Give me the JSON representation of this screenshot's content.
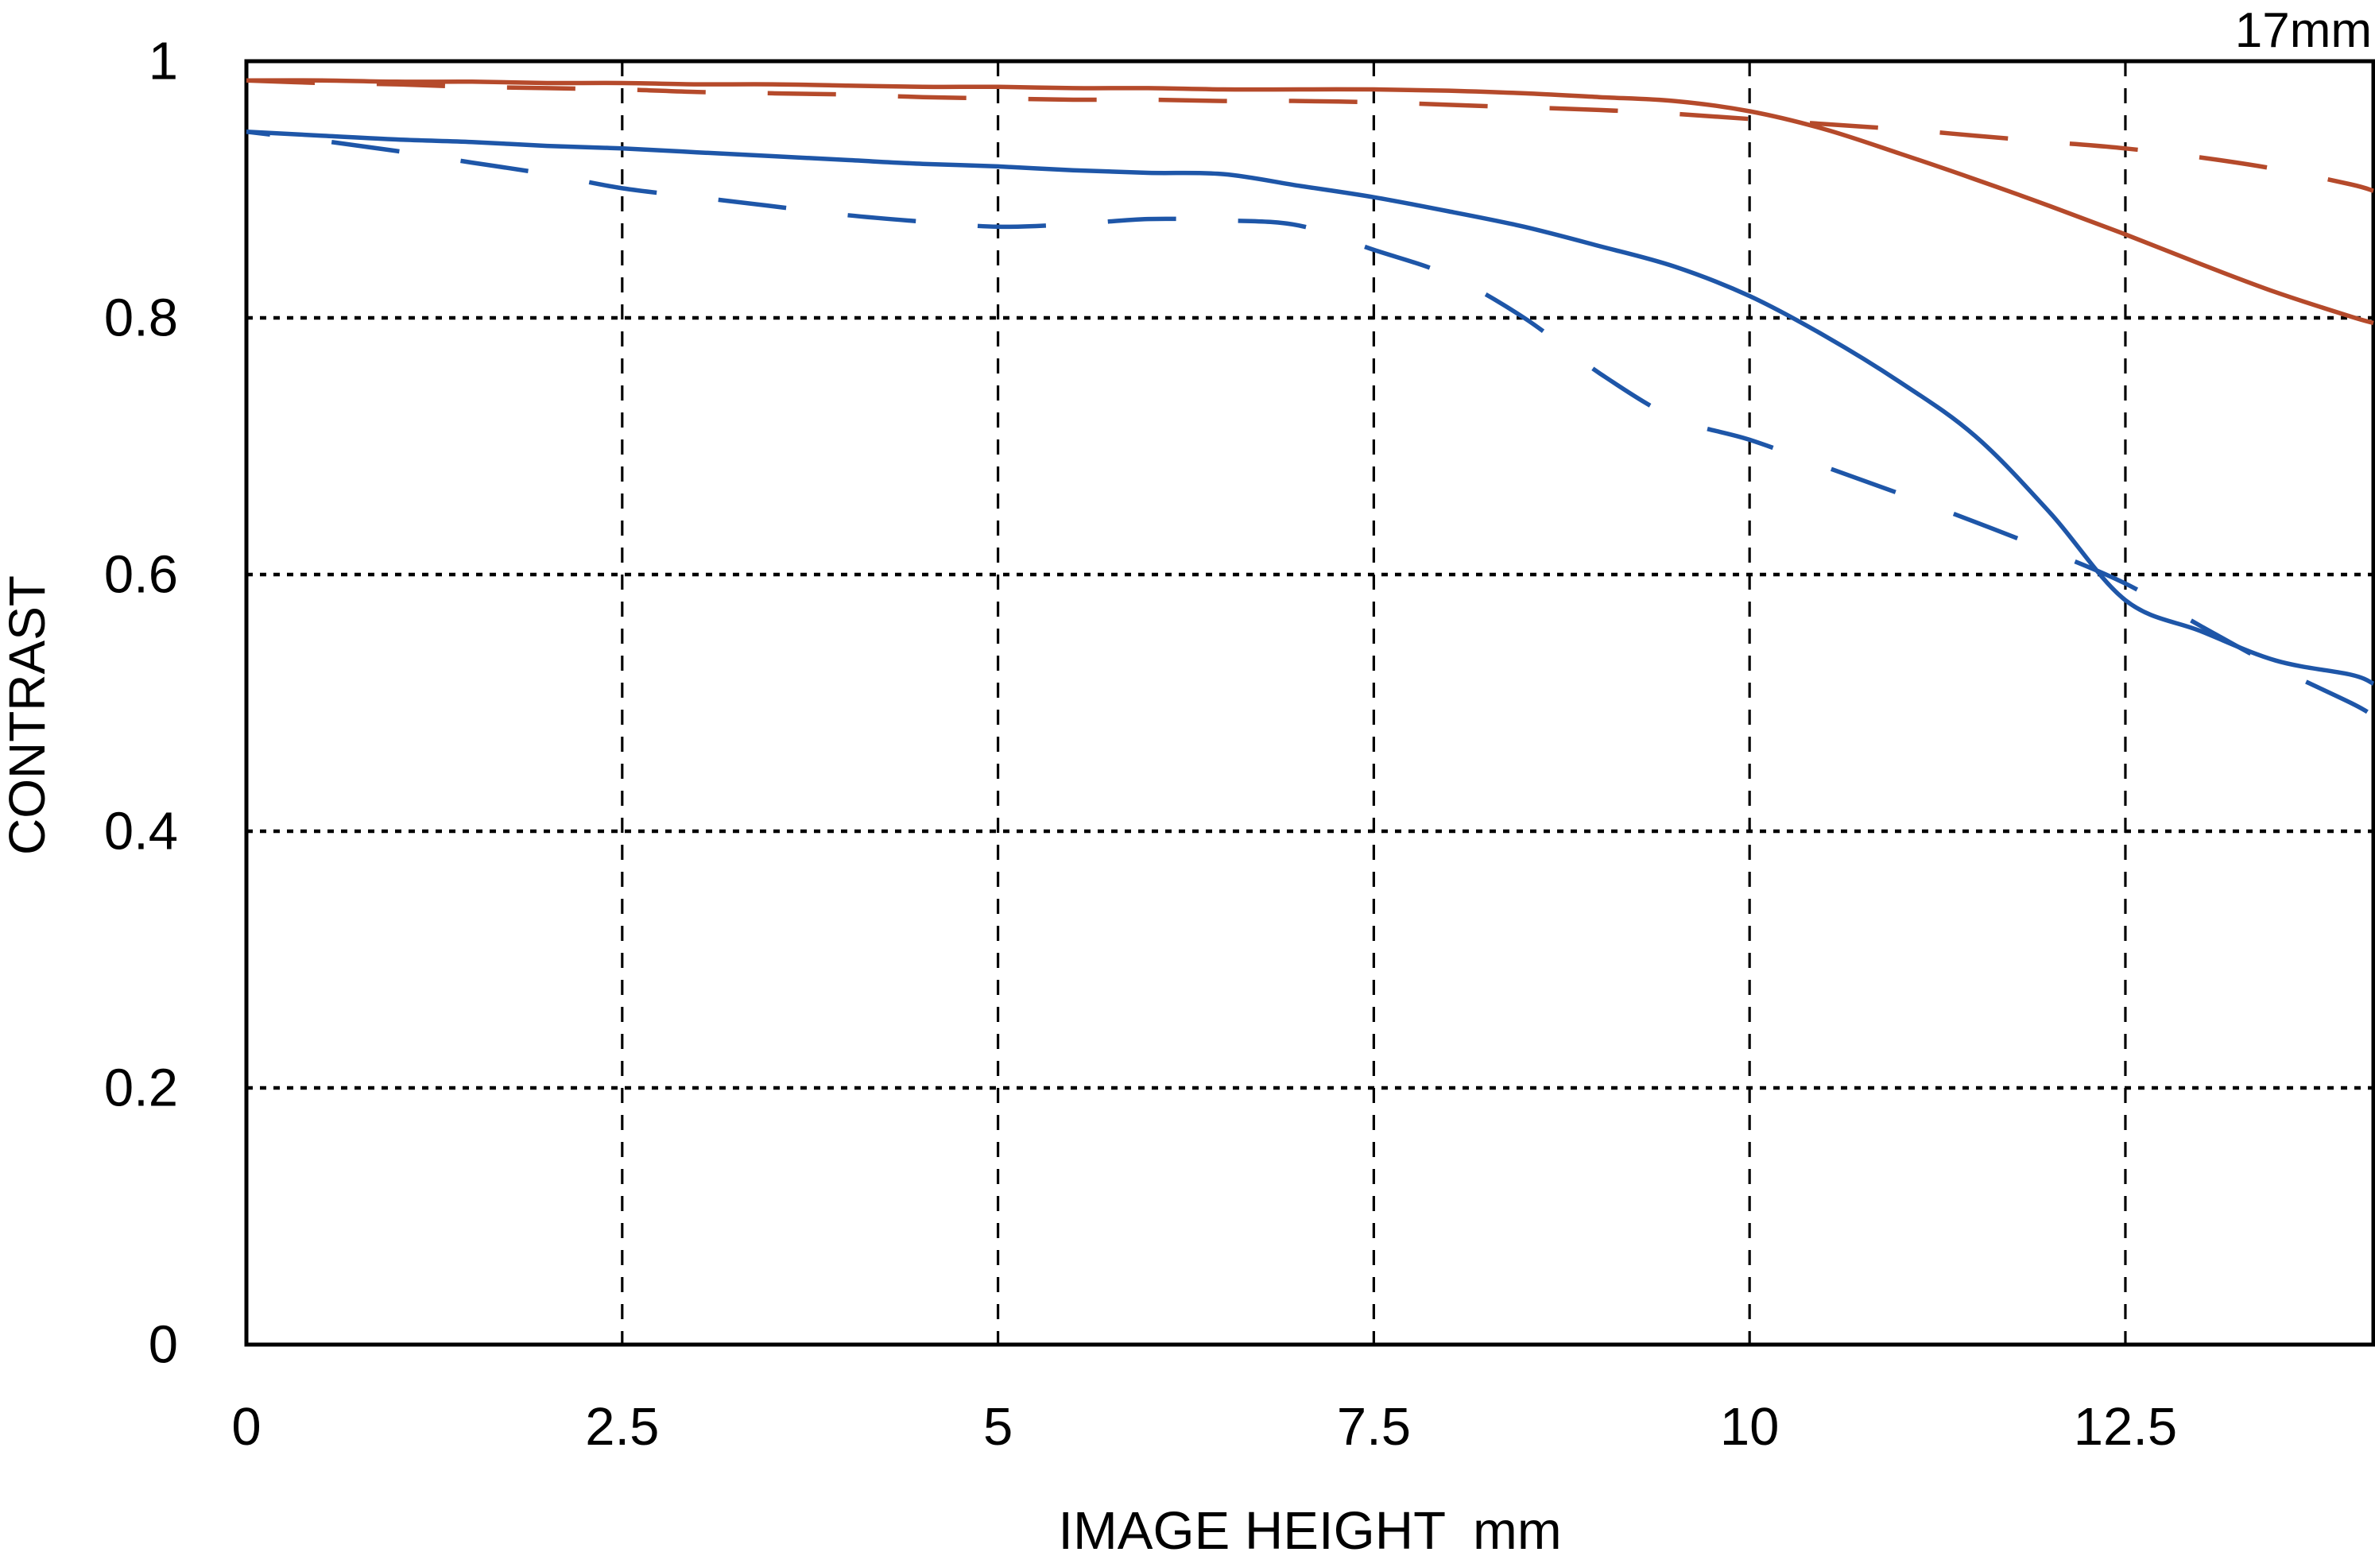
{
  "chart_title": "17mm",
  "chart_data": {
    "type": "line",
    "title": "17mm",
    "xlabel": "IMAGE HEIGHT",
    "xunit": "mm",
    "ylabel": "CONTRAST",
    "xlim": [
      0,
      14.15
    ],
    "ylim": [
      0,
      1
    ],
    "xticks": [
      0,
      2.5,
      5,
      7.5,
      10,
      12.5
    ],
    "yticks": [
      0,
      0.2,
      0.4,
      0.6,
      0.8,
      1
    ],
    "grid": {
      "vertical_style": "dashed",
      "horizontal_style": "dotted",
      "color": "#000000"
    },
    "legend": "none",
    "axis_color": "#000000",
    "x": [
      0,
      0.5,
      1,
      1.5,
      2,
      2.5,
      3,
      3.5,
      4,
      4.5,
      5,
      5.5,
      6,
      6.5,
      7,
      7.5,
      8,
      8.5,
      9,
      9.5,
      10,
      10.5,
      11,
      11.5,
      12,
      12.5,
      13,
      13.5,
      14,
      14.15
    ],
    "series": [
      {
        "name": "red-solid",
        "color": "#b54a2b",
        "style": "solid",
        "values": [
          0.985,
          0.985,
          0.984,
          0.984,
          0.983,
          0.983,
          0.982,
          0.982,
          0.981,
          0.98,
          0.98,
          0.979,
          0.979,
          0.978,
          0.978,
          0.978,
          0.977,
          0.975,
          0.972,
          0.969,
          0.961,
          0.947,
          0.928,
          0.908,
          0.887,
          0.865,
          0.842,
          0.82,
          0.801,
          0.796
        ]
      },
      {
        "name": "red-dashed",
        "color": "#b54a2b",
        "style": "dashed",
        "values": [
          0.985,
          0.983,
          0.982,
          0.98,
          0.979,
          0.978,
          0.976,
          0.975,
          0.974,
          0.972,
          0.971,
          0.97,
          0.97,
          0.969,
          0.969,
          0.968,
          0.966,
          0.964,
          0.962,
          0.959,
          0.955,
          0.951,
          0.947,
          0.942,
          0.937,
          0.932,
          0.925,
          0.916,
          0.904,
          0.899
        ]
      },
      {
        "name": "blue-solid",
        "color": "#1e56a8",
        "style": "solid",
        "values": [
          0.945,
          0.942,
          0.939,
          0.937,
          0.934,
          0.932,
          0.929,
          0.926,
          0.923,
          0.92,
          0.918,
          0.915,
          0.913,
          0.912,
          0.903,
          0.894,
          0.883,
          0.871,
          0.856,
          0.84,
          0.817,
          0.786,
          0.75,
          0.708,
          0.648,
          0.58,
          0.556,
          0.533,
          0.522,
          0.515
        ]
      },
      {
        "name": "blue-dashed",
        "color": "#1e56a8",
        "style": "dashed",
        "values": [
          0.945,
          0.938,
          0.93,
          0.921,
          0.912,
          0.901,
          0.894,
          0.887,
          0.88,
          0.875,
          0.871,
          0.873,
          0.877,
          0.876,
          0.872,
          0.853,
          0.833,
          0.8,
          0.757,
          0.722,
          0.705,
          0.684,
          0.663,
          0.641,
          0.618,
          0.593,
          0.56,
          0.528,
          0.5,
          0.49
        ]
      }
    ]
  }
}
